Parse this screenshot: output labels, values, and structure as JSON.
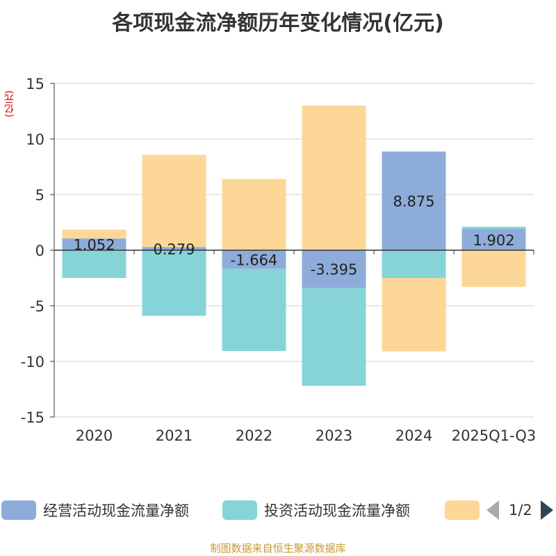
{
  "title": "各项现金流净额历年变化情况(亿元)",
  "unit_label": "(亿元)",
  "source": "制图数据来自恒生聚源数据库",
  "colors": {
    "operating": "#8eacd9",
    "investing": "#86d4d8",
    "financing": "#fdd797",
    "grid": "#d0d0d0",
    "axis": "#333333",
    "text": "#333333"
  },
  "legend": {
    "items": [
      {
        "label": "经营活动现金流量净额"
      },
      {
        "label": "投资活动现金流量净额"
      },
      {
        "label": ""
      }
    ],
    "page": "1/2"
  },
  "chart_data": {
    "type": "bar",
    "stacked": true,
    "title": "各项现金流净额历年变化情况(亿元)",
    "ylabel": "(亿元)",
    "categories": [
      "2020",
      "2021",
      "2022",
      "2023",
      "2024",
      "2025Q1-Q3"
    ],
    "ylim": [
      -15,
      15
    ],
    "yticks": [
      15,
      10,
      5,
      0,
      -5,
      -10,
      -15
    ],
    "grid": true,
    "series": [
      {
        "name": "经营活动现金流量净额",
        "key": "operating",
        "values": [
          1.052,
          0.279,
          -1.664,
          -3.395,
          8.875,
          1.902
        ],
        "labels": [
          "1.052",
          "0.279",
          "-1.664",
          "-3.395",
          "8.875",
          "1.902"
        ]
      },
      {
        "name": "投资活动现金流量净额",
        "key": "investing",
        "values": [
          -2.5,
          -5.9,
          -7.4,
          -8.8,
          -2.5,
          0.2
        ]
      },
      {
        "name": "",
        "key": "financing",
        "values": [
          0.8,
          8.3,
          6.4,
          13.0,
          -6.6,
          -3.3
        ]
      }
    ]
  }
}
